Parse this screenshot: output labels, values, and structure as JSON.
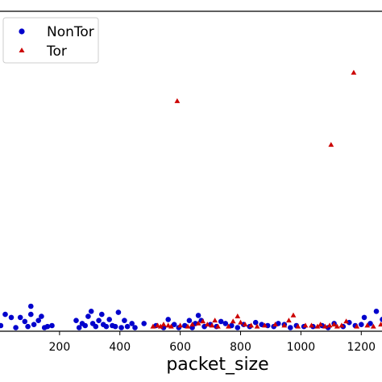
{
  "chart_data": {
    "type": "scatter",
    "xlabel": "packet_size",
    "ylabel": "",
    "xlim": [
      0,
      1300
    ],
    "x_ticks": [
      200,
      400,
      600,
      800,
      1000,
      1200
    ],
    "x_tick_labels": [
      "200",
      "400",
      "600",
      "800",
      "1000",
      "1200"
    ],
    "grid": false,
    "legend": "top-left",
    "series": [
      {
        "name": "NonTor",
        "color": "#0000cc",
        "marker": "circle",
        "points": [
          [
            5,
            0.4
          ],
          [
            20,
            1.5
          ],
          [
            40,
            1.2
          ],
          [
            55,
            0.2
          ],
          [
            70,
            1.2
          ],
          [
            85,
            0.8
          ],
          [
            95,
            0.3
          ],
          [
            105,
            1.5
          ],
          [
            105,
            2.3
          ],
          [
            115,
            0.5
          ],
          [
            130,
            0.9
          ],
          [
            140,
            1.3
          ],
          [
            150,
            0.2
          ],
          [
            160,
            0.3
          ],
          [
            175,
            0.4
          ],
          [
            255,
            0.9
          ],
          [
            265,
            0.2
          ],
          [
            275,
            0.6
          ],
          [
            285,
            0.4
          ],
          [
            295,
            1.3
          ],
          [
            305,
            1.8
          ],
          [
            310,
            0.6
          ],
          [
            320,
            0.3
          ],
          [
            330,
            0.9
          ],
          [
            340,
            1.5
          ],
          [
            345,
            0.5
          ],
          [
            355,
            0.3
          ],
          [
            365,
            1.0
          ],
          [
            375,
            0.4
          ],
          [
            385,
            0.3
          ],
          [
            395,
            1.7
          ],
          [
            405,
            0.2
          ],
          [
            415,
            0.9
          ],
          [
            425,
            0.3
          ],
          [
            440,
            0.6
          ],
          [
            450,
            0.2
          ],
          [
            480,
            0.6
          ],
          [
            520,
            0.4
          ],
          [
            545,
            0.2
          ],
          [
            560,
            1.0
          ],
          [
            580,
            0.5
          ],
          [
            595,
            0.2
          ],
          [
            615,
            0.4
          ],
          [
            630,
            0.9
          ],
          [
            640,
            0.2
          ],
          [
            650,
            0.6
          ],
          [
            660,
            1.4
          ],
          [
            670,
            0.9
          ],
          [
            680,
            0.3
          ],
          [
            700,
            0.5
          ],
          [
            720,
            0.3
          ],
          [
            735,
            0.8
          ],
          [
            750,
            0.6
          ],
          [
            770,
            0.4
          ],
          [
            790,
            0.2
          ],
          [
            810,
            0.5
          ],
          [
            830,
            0.3
          ],
          [
            850,
            0.7
          ],
          [
            870,
            0.5
          ],
          [
            890,
            0.4
          ],
          [
            910,
            0.3
          ],
          [
            925,
            0.6
          ],
          [
            945,
            0.5
          ],
          [
            965,
            0.2
          ],
          [
            985,
            0.4
          ],
          [
            1010,
            0.3
          ],
          [
            1040,
            0.3
          ],
          [
            1070,
            0.4
          ],
          [
            1090,
            0.2
          ],
          [
            1110,
            0.6
          ],
          [
            1140,
            0.3
          ],
          [
            1160,
            0.7
          ],
          [
            1180,
            0.4
          ],
          [
            1200,
            0.5
          ],
          [
            1210,
            1.2
          ],
          [
            1230,
            0.6
          ],
          [
            1250,
            1.8
          ],
          [
            1270,
            1.0
          ],
          [
            1290,
            0.5
          ]
        ]
      },
      {
        "name": "Tor",
        "color": "#cc0000",
        "marker": "triangle",
        "points": [
          [
            590,
            22.5
          ],
          [
            1175,
            25.3
          ],
          [
            1100,
            18.2
          ],
          [
            510,
            0.3
          ],
          [
            525,
            0.4
          ],
          [
            535,
            0.3
          ],
          [
            545,
            0.5
          ],
          [
            560,
            0.4
          ],
          [
            570,
            0.3
          ],
          [
            600,
            0.4
          ],
          [
            625,
            0.3
          ],
          [
            640,
            0.5
          ],
          [
            660,
            0.6
          ],
          [
            675,
            0.8
          ],
          [
            690,
            0.5
          ],
          [
            705,
            0.4
          ],
          [
            715,
            0.9
          ],
          [
            725,
            0.3
          ],
          [
            760,
            0.3
          ],
          [
            775,
            0.8
          ],
          [
            790,
            1.3
          ],
          [
            800,
            0.7
          ],
          [
            815,
            0.5
          ],
          [
            835,
            0.4
          ],
          [
            855,
            0.3
          ],
          [
            880,
            0.4
          ],
          [
            915,
            0.5
          ],
          [
            945,
            0.4
          ],
          [
            960,
            0.9
          ],
          [
            975,
            1.4
          ],
          [
            990,
            0.3
          ],
          [
            1015,
            0.4
          ],
          [
            1035,
            0.4
          ],
          [
            1055,
            0.3
          ],
          [
            1065,
            0.5
          ],
          [
            1080,
            0.3
          ],
          [
            1095,
            0.4
          ],
          [
            1110,
            0.5
          ],
          [
            1120,
            0.3
          ],
          [
            1135,
            0.4
          ],
          [
            1150,
            0.8
          ],
          [
            1185,
            0.3
          ],
          [
            1220,
            0.4
          ],
          [
            1240,
            0.3
          ],
          [
            1265,
            0.5
          ]
        ]
      }
    ]
  }
}
